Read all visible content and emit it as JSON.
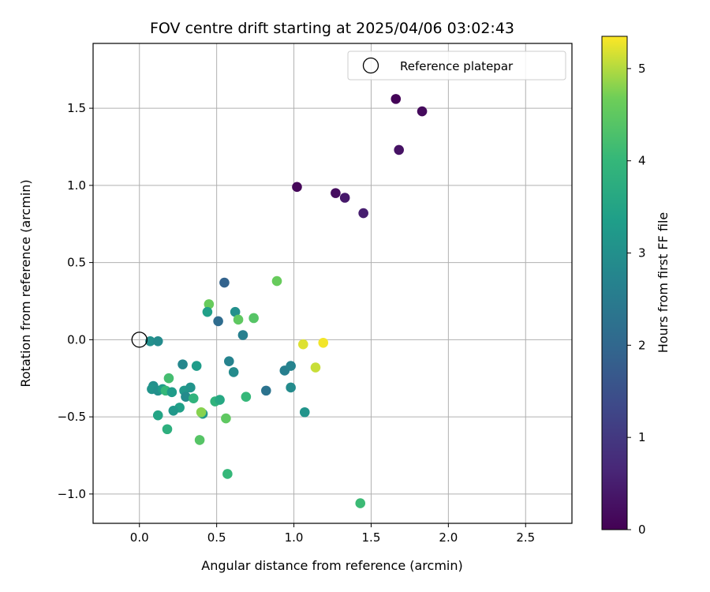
{
  "chart_data": {
    "type": "scatter",
    "title": "FOV centre drift starting at 2025/04/06 03:02:43",
    "xlabel": "Angular distance from reference (arcmin)",
    "ylabel": "Rotation from reference (arcmin)",
    "xlim": [
      -0.3,
      2.8
    ],
    "ylim": [
      -1.19,
      1.92
    ],
    "xticks": [
      0.0,
      0.5,
      1.0,
      1.5,
      2.0,
      2.5
    ],
    "xtick_labels": [
      "0.0",
      "0.5",
      "1.0",
      "1.5",
      "2.0",
      "2.5"
    ],
    "yticks": [
      -1.0,
      -0.5,
      0.0,
      0.5,
      1.0,
      1.5
    ],
    "ytick_labels": [
      "−1.0",
      "−0.5",
      "0.0",
      "0.5",
      "1.0",
      "1.5"
    ],
    "grid": true,
    "colormap": "viridis",
    "colorbar": {
      "label": "Hours from first FF file",
      "min": 0,
      "max": 5.35,
      "ticks": [
        0,
        1,
        2,
        3,
        4,
        5
      ],
      "tick_labels": [
        "0",
        "1",
        "2",
        "3",
        "4",
        "5"
      ]
    },
    "legend": {
      "position": "top-right",
      "entries": [
        {
          "label": "Reference platepar",
          "marker": "open-circle"
        }
      ]
    },
    "reference_point": {
      "x": 0.0,
      "y": 0.0
    },
    "points": [
      {
        "x": 1.66,
        "y": 1.56,
        "c": 0.05
      },
      {
        "x": 1.83,
        "y": 1.48,
        "c": 0.15
      },
      {
        "x": 1.68,
        "y": 1.23,
        "c": 0.3
      },
      {
        "x": 1.02,
        "y": 0.99,
        "c": 0.1
      },
      {
        "x": 1.27,
        "y": 0.95,
        "c": 0.2
      },
      {
        "x": 1.33,
        "y": 0.92,
        "c": 0.4
      },
      {
        "x": 1.45,
        "y": 0.82,
        "c": 0.5
      },
      {
        "x": 0.55,
        "y": 0.37,
        "c": 1.9
      },
      {
        "x": 0.89,
        "y": 0.38,
        "c": 4.6
      },
      {
        "x": 0.45,
        "y": 0.23,
        "c": 4.6
      },
      {
        "x": 0.44,
        "y": 0.18,
        "c": 3.4
      },
      {
        "x": 0.62,
        "y": 0.18,
        "c": 3.0
      },
      {
        "x": 0.51,
        "y": 0.12,
        "c": 2.1
      },
      {
        "x": 0.64,
        "y": 0.13,
        "c": 4.5
      },
      {
        "x": 0.74,
        "y": 0.14,
        "c": 4.4
      },
      {
        "x": 0.67,
        "y": 0.03,
        "c": 2.6
      },
      {
        "x": 0.07,
        "y": -0.01,
        "c": 3.0
      },
      {
        "x": 0.12,
        "y": -0.01,
        "c": 2.9
      },
      {
        "x": 1.06,
        "y": -0.03,
        "c": 5.2
      },
      {
        "x": 1.19,
        "y": -0.02,
        "c": 5.3
      },
      {
        "x": 1.14,
        "y": -0.18,
        "c": 5.1
      },
      {
        "x": 0.58,
        "y": -0.14,
        "c": 2.7
      },
      {
        "x": 0.28,
        "y": -0.16,
        "c": 2.8
      },
      {
        "x": 0.37,
        "y": -0.17,
        "c": 3.3
      },
      {
        "x": 0.61,
        "y": -0.21,
        "c": 2.9
      },
      {
        "x": 0.94,
        "y": -0.2,
        "c": 2.6
      },
      {
        "x": 0.98,
        "y": -0.17,
        "c": 2.7
      },
      {
        "x": 0.19,
        "y": -0.25,
        "c": 4.2
      },
      {
        "x": 0.09,
        "y": -0.3,
        "c": 3.0
      },
      {
        "x": 0.08,
        "y": -0.32,
        "c": 3.1
      },
      {
        "x": 0.12,
        "y": -0.33,
        "c": 3.0
      },
      {
        "x": 0.15,
        "y": -0.32,
        "c": 3.3
      },
      {
        "x": 0.17,
        "y": -0.33,
        "c": 4.0
      },
      {
        "x": 0.21,
        "y": -0.34,
        "c": 3.3
      },
      {
        "x": 0.29,
        "y": -0.33,
        "c": 3.2
      },
      {
        "x": 0.33,
        "y": -0.31,
        "c": 3.1
      },
      {
        "x": 0.3,
        "y": -0.37,
        "c": 2.9
      },
      {
        "x": 0.35,
        "y": -0.38,
        "c": 3.9
      },
      {
        "x": 0.49,
        "y": -0.4,
        "c": 3.9
      },
      {
        "x": 0.52,
        "y": -0.39,
        "c": 3.6
      },
      {
        "x": 0.69,
        "y": -0.37,
        "c": 4.0
      },
      {
        "x": 0.82,
        "y": -0.33,
        "c": 2.3
      },
      {
        "x": 0.98,
        "y": -0.31,
        "c": 2.9
      },
      {
        "x": 0.26,
        "y": -0.44,
        "c": 3.4
      },
      {
        "x": 0.22,
        "y": -0.46,
        "c": 3.2
      },
      {
        "x": 0.12,
        "y": -0.49,
        "c": 3.5
      },
      {
        "x": 0.41,
        "y": -0.48,
        "c": 3.2
      },
      {
        "x": 0.4,
        "y": -0.47,
        "c": 4.8
      },
      {
        "x": 0.56,
        "y": -0.51,
        "c": 4.5
      },
      {
        "x": 1.07,
        "y": -0.47,
        "c": 3.1
      },
      {
        "x": 0.18,
        "y": -0.58,
        "c": 3.8
      },
      {
        "x": 0.39,
        "y": -0.65,
        "c": 4.4
      },
      {
        "x": 0.57,
        "y": -0.87,
        "c": 4.0
      },
      {
        "x": 1.43,
        "y": -1.06,
        "c": 4.1
      }
    ]
  }
}
